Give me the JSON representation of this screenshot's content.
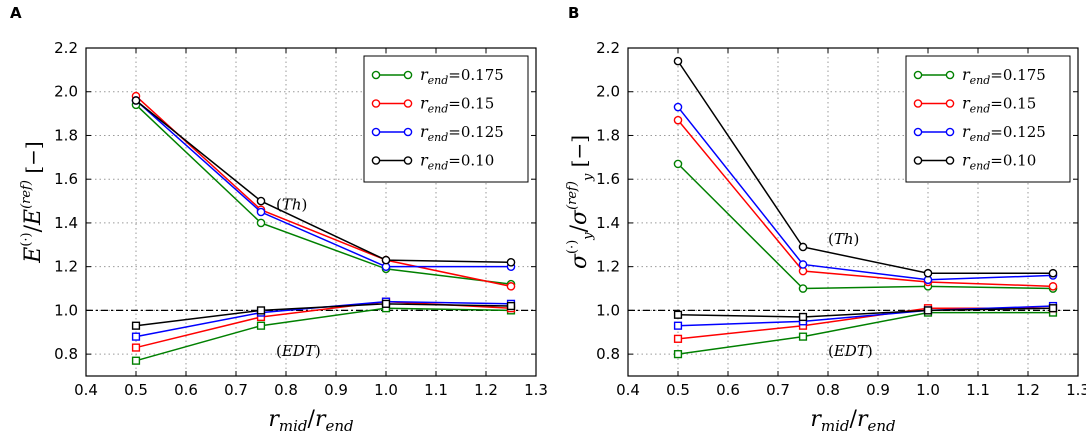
{
  "chart_data": [
    {
      "panel": "A",
      "type": "line",
      "xlabel": "r_mid/r_end",
      "ylabel": "E^(·)/E^(ref)  [−]",
      "xlim": [
        0.4,
        1.3
      ],
      "ylim": [
        0.7,
        2.2
      ],
      "xticks": [
        "0.4",
        "0.5",
        "0.6",
        "0.7",
        "0.8",
        "0.9",
        "1.0",
        "1.1",
        "1.2",
        "1.3"
      ],
      "yticks": [
        "0.8",
        "1.0",
        "1.2",
        "1.4",
        "1.6",
        "1.8",
        "2.0",
        "2.2"
      ],
      "grid": true,
      "reference_line": 1.0,
      "legend_position": "top-right",
      "annotations": [
        {
          "text": "(Th)",
          "x": 0.8,
          "y": 1.49
        },
        {
          "text": "(EDT)",
          "x": 0.8,
          "y": 0.82
        }
      ],
      "x": [
        0.5,
        0.75,
        1.0,
        1.25
      ],
      "series": [
        {
          "name": "r_end=0.175",
          "legend_value": "0.175",
          "color": "#008000",
          "th": [
            1.94,
            1.4,
            1.19,
            1.12
          ],
          "edt": [
            0.77,
            0.93,
            1.01,
            1.0
          ]
        },
        {
          "name": "r_end=0.15",
          "legend_value": "0.15",
          "color": "#ff0000",
          "th": [
            1.98,
            1.46,
            1.23,
            1.11
          ],
          "edt": [
            0.83,
            0.97,
            1.04,
            1.01
          ]
        },
        {
          "name": "r_end=0.125",
          "legend_value": "0.125",
          "color": "#0000ff",
          "th": [
            1.96,
            1.45,
            1.2,
            1.2
          ],
          "edt": [
            0.88,
            0.99,
            1.04,
            1.03
          ]
        },
        {
          "name": "r_end=0.10",
          "legend_value": "0.10",
          "color": "#000000",
          "th": [
            1.96,
            1.5,
            1.23,
            1.22
          ],
          "edt": [
            0.93,
            1.0,
            1.03,
            1.02
          ]
        }
      ]
    },
    {
      "panel": "B",
      "type": "line",
      "xlabel": "r_mid/r_end",
      "ylabel": "σ_y^(·)/σ_y^(ref)  [−]",
      "xlim": [
        0.4,
        1.3
      ],
      "ylim": [
        0.7,
        2.2
      ],
      "xticks": [
        "0.4",
        "0.5",
        "0.6",
        "0.7",
        "0.8",
        "0.9",
        "1.0",
        "1.1",
        "1.2",
        "1.3"
      ],
      "yticks": [
        "0.8",
        "1.0",
        "1.2",
        "1.4",
        "1.6",
        "1.8",
        "2.0",
        "2.2"
      ],
      "grid": true,
      "reference_line": 1.0,
      "legend_position": "top-right",
      "annotations": [
        {
          "text": "(Th)",
          "x": 0.82,
          "y": 1.33
        },
        {
          "text": "(EDT)",
          "x": 0.82,
          "y": 0.82
        }
      ],
      "x": [
        0.5,
        0.75,
        1.0,
        1.25
      ],
      "series": [
        {
          "name": "r_end=0.175",
          "legend_value": "0.175",
          "color": "#008000",
          "th": [
            1.67,
            1.1,
            1.11,
            1.1
          ],
          "edt": [
            0.8,
            0.88,
            0.99,
            0.99
          ]
        },
        {
          "name": "r_end=0.15",
          "legend_value": "0.15",
          "color": "#ff0000",
          "th": [
            1.87,
            1.18,
            1.13,
            1.11
          ],
          "edt": [
            0.87,
            0.93,
            1.01,
            1.01
          ]
        },
        {
          "name": "r_end=0.125",
          "legend_value": "0.125",
          "color": "#0000ff",
          "th": [
            1.93,
            1.21,
            1.14,
            1.16
          ],
          "edt": [
            0.93,
            0.95,
            1.0,
            1.02
          ]
        },
        {
          "name": "r_end=0.10",
          "legend_value": "0.10",
          "color": "#000000",
          "th": [
            2.14,
            1.29,
            1.17,
            1.17
          ],
          "edt": [
            0.98,
            0.97,
            1.0,
            1.01
          ]
        }
      ]
    }
  ]
}
